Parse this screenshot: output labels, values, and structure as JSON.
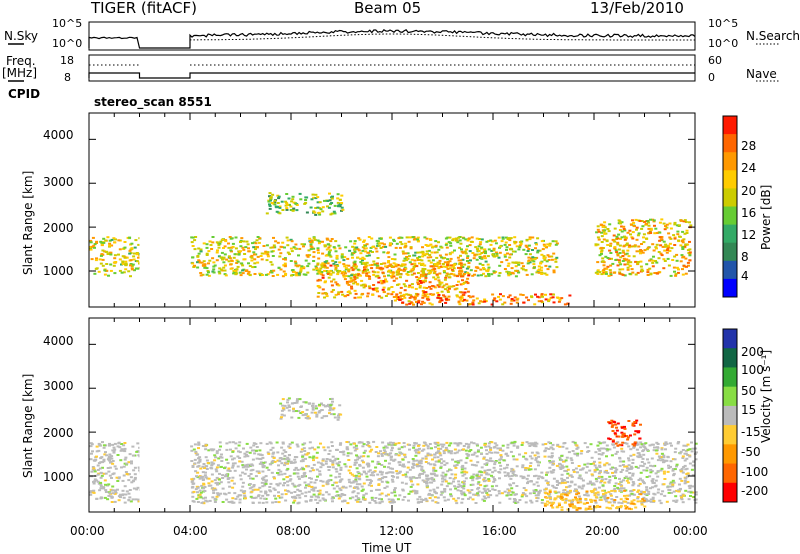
{
  "header": {
    "title": "TIGER (fitACF)",
    "beam": "Beam 05",
    "date": "13/Feb/2010"
  },
  "params": {
    "nsky_label": "N.Sky",
    "nsky_ticks": [
      "10^5",
      "10^0"
    ],
    "nsearch_label": "N.Search",
    "nsearch_ticks": [
      "10^5",
      "10^0"
    ],
    "freq_label": "Freq.",
    "freq_unit": "[MHz]",
    "freq_ticks": [
      "18",
      "8"
    ],
    "nave_label": "Nave",
    "nave_ticks": [
      "60",
      "0"
    ],
    "cpid_label": "CPID",
    "cpid_value": "stereo_scan 8551"
  },
  "axes": {
    "ylabel": "Slant Range [km]",
    "xlabel": "Time UT",
    "yticks": [
      "4000",
      "3000",
      "2000",
      "1000"
    ],
    "xticks": [
      "00:00",
      "04:00",
      "08:00",
      "12:00",
      "16:00",
      "20:00",
      "00:00"
    ]
  },
  "colorbars": {
    "power": {
      "label": "Power [dB]",
      "ticks": [
        "28",
        "24",
        "20",
        "16",
        "12",
        "8",
        "4"
      ],
      "colors": [
        "#ff1a00",
        "#ff6600",
        "#ff9900",
        "#ffcc00",
        "#cccc00",
        "#66cc33",
        "#33aa66",
        "#338855",
        "#2255aa",
        "#0000ff"
      ]
    },
    "velocity": {
      "label": "Velocity [m s⁻¹]",
      "ticks": [
        "200",
        "100",
        "50",
        "15",
        "-15",
        "-50",
        "-100",
        "-200"
      ],
      "colors": [
        "#2233aa",
        "#116644",
        "#33aa33",
        "#88dd44",
        "#bbbbbb",
        "#ffcc33",
        "#ff9900",
        "#ff6600",
        "#ff0000"
      ]
    }
  },
  "chart_data": [
    {
      "type": "heatmap",
      "name": "Power",
      "xlabel": "Time UT",
      "ylabel": "Slant Range [km]",
      "xlim": [
        0,
        24
      ],
      "ylim": [
        180,
        4600
      ],
      "colorbar_label": "Power [dB]",
      "colorbar_ticks": [
        28,
        24,
        20,
        16,
        12,
        8,
        4
      ],
      "data_gaps_hours": [
        [
          2,
          4
        ]
      ],
      "regions": [
        {
          "x": [
            0,
            2
          ],
          "y": [
            900,
            1800
          ],
          "level": 20
        },
        {
          "x": [
            4,
            18.5
          ],
          "y": [
            900,
            1800
          ],
          "level": 20
        },
        {
          "x": [
            9,
            15
          ],
          "y": [
            400,
            1200
          ],
          "level": 24
        },
        {
          "x": [
            12,
            19
          ],
          "y": [
            250,
            500
          ],
          "level": 26
        },
        {
          "x": [
            7,
            10
          ],
          "y": [
            2300,
            2800
          ],
          "level": 16
        },
        {
          "x": [
            20,
            23.8
          ],
          "y": [
            900,
            2200
          ],
          "level": 22
        }
      ]
    },
    {
      "type": "heatmap",
      "name": "Velocity",
      "xlabel": "Time UT",
      "ylabel": "Slant Range [km]",
      "xlim": [
        0,
        24
      ],
      "ylim": [
        180,
        4600
      ],
      "colorbar_label": "Velocity [m s⁻¹]",
      "colorbar_ticks": [
        200,
        100,
        50,
        15,
        -15,
        -50,
        -100,
        -200
      ],
      "data_gaps_hours": [
        [
          2,
          4
        ]
      ],
      "regions": [
        {
          "x": [
            0,
            2
          ],
          "y": [
            400,
            1800
          ],
          "level": 0
        },
        {
          "x": [
            4,
            24
          ],
          "y": [
            400,
            1800
          ],
          "level": 0
        },
        {
          "x": [
            18,
            22
          ],
          "y": [
            250,
            700
          ],
          "level": -40
        },
        {
          "x": [
            20.5,
            21.8
          ],
          "y": [
            1700,
            2300
          ],
          "level": -200
        },
        {
          "x": [
            7.5,
            10
          ],
          "y": [
            2300,
            2800
          ],
          "level": 0
        }
      ]
    }
  ]
}
